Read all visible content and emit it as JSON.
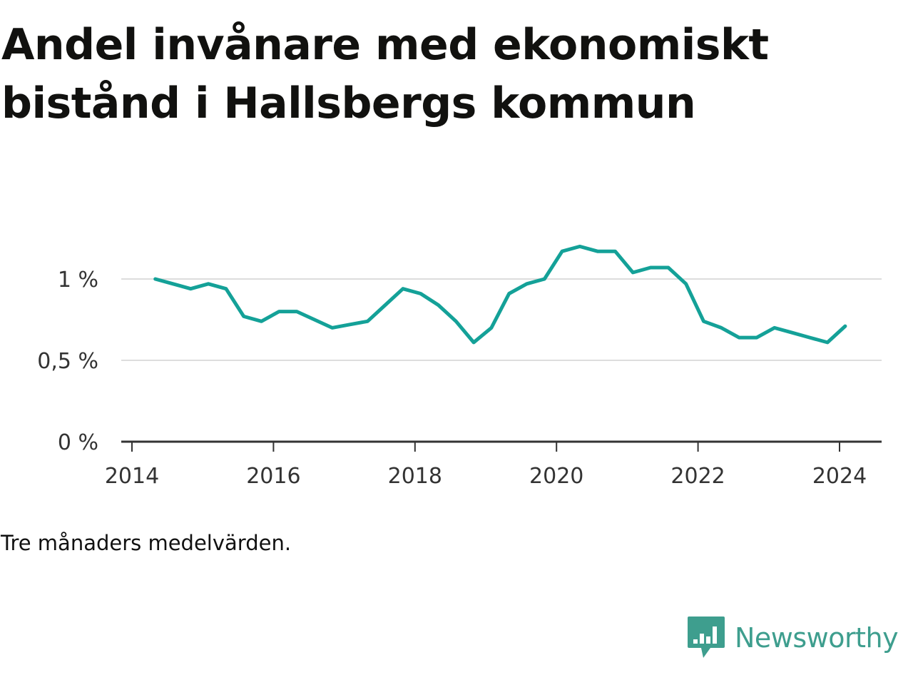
{
  "title": "Andel invånare med ekonomiskt bistånd i Hallsbergs kommun",
  "footnote": "Tre månaders medelvärden.",
  "brand": {
    "name": "Newsworthy",
    "icon": "newsworthy-logo-icon",
    "color": "#3e9e8e"
  },
  "colors": {
    "line": "#14a198",
    "grid": "#dddddd",
    "axis": "#333333"
  },
  "chart_data": {
    "type": "line",
    "title": "Andel invånare med ekonomiskt bistånd i Hallsbergs kommun",
    "xlabel": "",
    "ylabel": "",
    "xlim": [
      2014,
      2025
    ],
    "ylim": [
      0,
      1.25
    ],
    "grid": true,
    "legend": "none",
    "y_ticks": [
      {
        "value": 0,
        "label": "0 %"
      },
      {
        "value": 0.5,
        "label": "0,5 %"
      },
      {
        "value": 1,
        "label": "1 %"
      }
    ],
    "x_ticks": [
      {
        "value": 2014,
        "label": "2014"
      },
      {
        "value": 2016,
        "label": "2016"
      },
      {
        "value": 2018,
        "label": "2018"
      },
      {
        "value": 2020,
        "label": "2020"
      },
      {
        "value": 2022,
        "label": "2022"
      },
      {
        "value": 2024,
        "label": "2024"
      }
    ],
    "series": [
      {
        "x": [
          2014.33,
          2014.58,
          2014.83,
          2015.08,
          2015.33,
          2015.58,
          2015.83,
          2016.08,
          2016.33,
          2016.58,
          2016.83,
          2017.08,
          2017.33,
          2017.58,
          2017.83,
          2018.08,
          2018.33,
          2018.58,
          2018.83,
          2019.08,
          2019.33,
          2019.58,
          2019.83,
          2020.08,
          2020.33,
          2020.58,
          2020.83,
          2021.08,
          2021.33,
          2021.58,
          2021.83,
          2022.08,
          2022.33,
          2022.58,
          2022.83,
          2023.08,
          2023.33,
          2023.58,
          2023.83,
          2024.08
        ],
        "values": [
          1.0,
          0.97,
          0.94,
          0.97,
          0.94,
          0.77,
          0.74,
          0.8,
          0.8,
          0.75,
          0.7,
          0.72,
          0.74,
          0.84,
          0.94,
          0.91,
          0.84,
          0.74,
          0.61,
          0.7,
          0.91,
          0.97,
          1.0,
          1.17,
          1.2,
          1.17,
          1.17,
          1.04,
          1.07,
          1.07,
          0.97,
          0.74,
          0.7,
          0.64,
          0.64,
          0.7,
          0.67,
          0.64,
          0.61,
          0.71
        ]
      }
    ]
  }
}
